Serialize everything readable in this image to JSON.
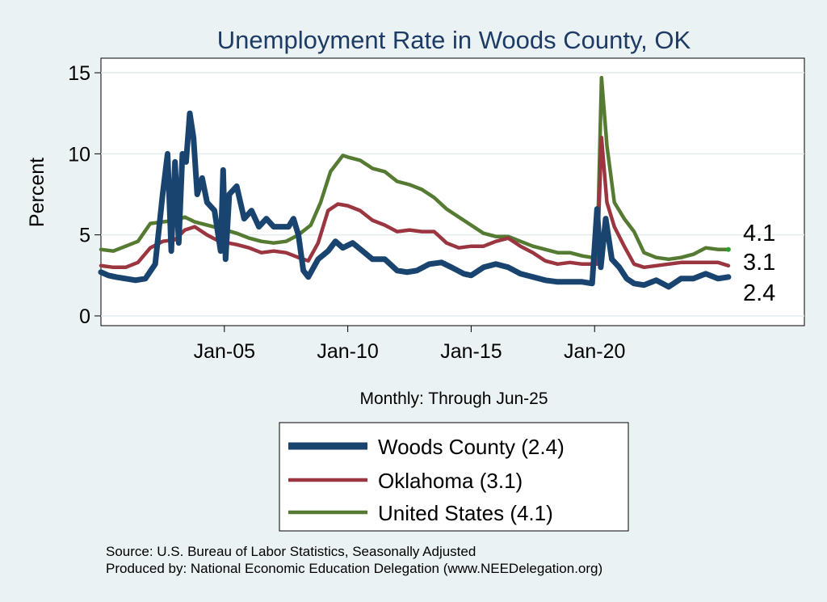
{
  "chart_data": {
    "type": "line",
    "title": "Unemployment Rate in Woods  County, OK",
    "xlabel": "Monthly: Through Jun-25",
    "ylabel": "Percent",
    "xlim": [
      2000.0,
      2028.5
    ],
    "ylim": [
      -0.6,
      15.9
    ],
    "yticks": [
      0,
      5,
      10,
      15
    ],
    "xticks": [
      {
        "value": 2005.0,
        "label": "Jan-05"
      },
      {
        "value": 2010.0,
        "label": "Jan-10"
      },
      {
        "value": 2015.0,
        "label": "Jan-15"
      },
      {
        "value": 2020.0,
        "label": "Jan-20"
      }
    ],
    "grid": true,
    "legend_position": "bottom",
    "series": [
      {
        "name": "Woods  County",
        "legend": "Woods  County (2.4)",
        "end_value": "2.4",
        "color": "#1a4470",
        "points": [
          [
            2000.0,
            2.7
          ],
          [
            2000.3,
            2.5
          ],
          [
            2000.6,
            2.4
          ],
          [
            2001.0,
            2.3
          ],
          [
            2001.4,
            2.2
          ],
          [
            2001.8,
            2.3
          ],
          [
            2002.2,
            3.2
          ],
          [
            2002.5,
            7.5
          ],
          [
            2002.7,
            10.0
          ],
          [
            2002.85,
            4.0
          ],
          [
            2003.0,
            9.5
          ],
          [
            2003.15,
            4.5
          ],
          [
            2003.3,
            10.0
          ],
          [
            2003.45,
            9.5
          ],
          [
            2003.6,
            12.5
          ],
          [
            2003.75,
            11.0
          ],
          [
            2003.9,
            7.5
          ],
          [
            2004.1,
            8.5
          ],
          [
            2004.3,
            7.0
          ],
          [
            2004.6,
            6.5
          ],
          [
            2004.85,
            4.0
          ],
          [
            2004.95,
            9.0
          ],
          [
            2005.05,
            3.5
          ],
          [
            2005.2,
            7.5
          ],
          [
            2005.5,
            8.0
          ],
          [
            2005.8,
            6.0
          ],
          [
            2006.1,
            6.5
          ],
          [
            2006.4,
            5.5
          ],
          [
            2006.7,
            6.0
          ],
          [
            2007.0,
            5.5
          ],
          [
            2007.3,
            5.5
          ],
          [
            2007.6,
            5.5
          ],
          [
            2007.8,
            6.0
          ],
          [
            2008.0,
            5.0
          ],
          [
            2008.2,
            2.8
          ],
          [
            2008.4,
            2.4
          ],
          [
            2008.8,
            3.5
          ],
          [
            2009.2,
            4.0
          ],
          [
            2009.5,
            4.6
          ],
          [
            2009.8,
            4.2
          ],
          [
            2010.2,
            4.5
          ],
          [
            2010.6,
            4.0
          ],
          [
            2011.0,
            3.5
          ],
          [
            2011.5,
            3.5
          ],
          [
            2012.0,
            2.8
          ],
          [
            2012.4,
            2.7
          ],
          [
            2012.8,
            2.8
          ],
          [
            2013.3,
            3.2
          ],
          [
            2013.8,
            3.3
          ],
          [
            2014.2,
            3.0
          ],
          [
            2014.7,
            2.6
          ],
          [
            2015.0,
            2.5
          ],
          [
            2015.5,
            3.0
          ],
          [
            2016.0,
            3.2
          ],
          [
            2016.5,
            3.0
          ],
          [
            2017.0,
            2.6
          ],
          [
            2017.5,
            2.4
          ],
          [
            2018.0,
            2.2
          ],
          [
            2018.5,
            2.1
          ],
          [
            2019.0,
            2.1
          ],
          [
            2019.5,
            2.1
          ],
          [
            2019.9,
            2.0
          ],
          [
            2020.1,
            6.6
          ],
          [
            2020.25,
            3.0
          ],
          [
            2020.45,
            6.0
          ],
          [
            2020.7,
            3.5
          ],
          [
            2021.0,
            3.0
          ],
          [
            2021.3,
            2.3
          ],
          [
            2021.6,
            2.0
          ],
          [
            2022.0,
            1.9
          ],
          [
            2022.5,
            2.2
          ],
          [
            2023.0,
            1.8
          ],
          [
            2023.5,
            2.3
          ],
          [
            2024.0,
            2.3
          ],
          [
            2024.5,
            2.6
          ],
          [
            2025.0,
            2.3
          ],
          [
            2025.42,
            2.4
          ]
        ]
      },
      {
        "name": "Oklahoma",
        "legend": "Oklahoma (3.1)",
        "end_value": "3.1",
        "color": "#9b3540",
        "points": [
          [
            2000.0,
            3.1
          ],
          [
            2000.5,
            3.0
          ],
          [
            2001.0,
            3.0
          ],
          [
            2001.5,
            3.3
          ],
          [
            2002.0,
            4.2
          ],
          [
            2002.5,
            4.6
          ],
          [
            2003.0,
            4.7
          ],
          [
            2003.4,
            5.3
          ],
          [
            2003.8,
            5.5
          ],
          [
            2004.3,
            5.0
          ],
          [
            2004.8,
            4.6
          ],
          [
            2005.5,
            4.4
          ],
          [
            2006.0,
            4.2
          ],
          [
            2006.5,
            3.9
          ],
          [
            2007.0,
            4.0
          ],
          [
            2007.5,
            3.9
          ],
          [
            2008.0,
            3.6
          ],
          [
            2008.4,
            3.4
          ],
          [
            2008.8,
            4.5
          ],
          [
            2009.2,
            6.5
          ],
          [
            2009.6,
            6.9
          ],
          [
            2010.0,
            6.8
          ],
          [
            2010.5,
            6.5
          ],
          [
            2011.0,
            5.9
          ],
          [
            2011.5,
            5.6
          ],
          [
            2012.0,
            5.2
          ],
          [
            2012.5,
            5.3
          ],
          [
            2013.0,
            5.2
          ],
          [
            2013.5,
            5.2
          ],
          [
            2014.0,
            4.5
          ],
          [
            2014.5,
            4.2
          ],
          [
            2015.0,
            4.3
          ],
          [
            2015.5,
            4.3
          ],
          [
            2016.0,
            4.6
          ],
          [
            2016.5,
            4.8
          ],
          [
            2017.0,
            4.3
          ],
          [
            2017.5,
            3.9
          ],
          [
            2018.0,
            3.4
          ],
          [
            2018.5,
            3.2
          ],
          [
            2019.0,
            3.3
          ],
          [
            2019.5,
            3.2
          ],
          [
            2019.9,
            3.2
          ],
          [
            2020.1,
            3.2
          ],
          [
            2020.28,
            11.0
          ],
          [
            2020.5,
            7.0
          ],
          [
            2020.8,
            5.5
          ],
          [
            2021.2,
            4.3
          ],
          [
            2021.6,
            3.2
          ],
          [
            2022.0,
            3.0
          ],
          [
            2022.5,
            3.1
          ],
          [
            2023.0,
            3.2
          ],
          [
            2023.5,
            3.3
          ],
          [
            2024.0,
            3.3
          ],
          [
            2024.5,
            3.3
          ],
          [
            2025.0,
            3.3
          ],
          [
            2025.42,
            3.1
          ]
        ]
      },
      {
        "name": "United States",
        "legend": "United States (4.1)",
        "end_value": "4.1",
        "color": "#557a32",
        "points": [
          [
            2000.0,
            4.1
          ],
          [
            2000.5,
            4.0
          ],
          [
            2001.0,
            4.3
          ],
          [
            2001.5,
            4.6
          ],
          [
            2002.0,
            5.7
          ],
          [
            2002.5,
            5.8
          ],
          [
            2003.0,
            5.9
          ],
          [
            2003.4,
            6.1
          ],
          [
            2003.8,
            5.8
          ],
          [
            2004.3,
            5.6
          ],
          [
            2004.8,
            5.4
          ],
          [
            2005.5,
            5.1
          ],
          [
            2006.0,
            4.8
          ],
          [
            2006.5,
            4.6
          ],
          [
            2007.0,
            4.5
          ],
          [
            2007.5,
            4.6
          ],
          [
            2008.0,
            5.0
          ],
          [
            2008.5,
            5.6
          ],
          [
            2008.9,
            7.0
          ],
          [
            2009.3,
            8.9
          ],
          [
            2009.8,
            9.9
          ],
          [
            2010.0,
            9.8
          ],
          [
            2010.5,
            9.6
          ],
          [
            2011.0,
            9.1
          ],
          [
            2011.5,
            8.9
          ],
          [
            2012.0,
            8.3
          ],
          [
            2012.5,
            8.1
          ],
          [
            2013.0,
            7.8
          ],
          [
            2013.5,
            7.3
          ],
          [
            2014.0,
            6.6
          ],
          [
            2014.5,
            6.1
          ],
          [
            2015.0,
            5.6
          ],
          [
            2015.5,
            5.1
          ],
          [
            2016.0,
            4.9
          ],
          [
            2016.5,
            4.9
          ],
          [
            2017.0,
            4.6
          ],
          [
            2017.5,
            4.3
          ],
          [
            2018.0,
            4.1
          ],
          [
            2018.5,
            3.9
          ],
          [
            2019.0,
            3.9
          ],
          [
            2019.5,
            3.7
          ],
          [
            2019.9,
            3.6
          ],
          [
            2020.1,
            3.5
          ],
          [
            2020.28,
            14.7
          ],
          [
            2020.5,
            10.5
          ],
          [
            2020.8,
            7.0
          ],
          [
            2021.2,
            6.0
          ],
          [
            2021.6,
            5.2
          ],
          [
            2022.0,
            3.9
          ],
          [
            2022.5,
            3.6
          ],
          [
            2023.0,
            3.5
          ],
          [
            2023.5,
            3.6
          ],
          [
            2024.0,
            3.8
          ],
          [
            2024.5,
            4.2
          ],
          [
            2025.0,
            4.1
          ],
          [
            2025.42,
            4.1
          ]
        ]
      }
    ]
  },
  "source": {
    "line1": "Source: U.S. Bureau of Labor Statistics, Seasonally Adjusted",
    "line2": "Produced by: National Economic Education Delegation (www.NEEDelegation.org)"
  }
}
